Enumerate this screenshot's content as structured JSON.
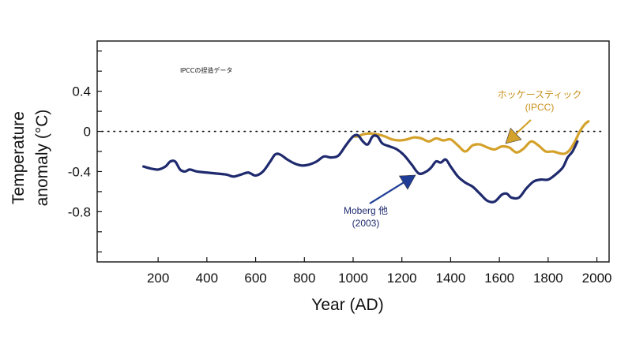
{
  "chart_data": {
    "type": "line",
    "title": "",
    "xlabel": "Year (AD)",
    "ylabel_line1": "Temperature",
    "ylabel_line2": "anomaly (°C)",
    "xlim": [
      -50,
      2050
    ],
    "ylim": [
      -1.3,
      0.9
    ],
    "xticks": [
      200,
      400,
      600,
      800,
      1000,
      1200,
      1400,
      1600,
      1800,
      2000
    ],
    "yticks": [
      0.4,
      0,
      -0.4,
      -0.8
    ],
    "ytick_labels": [
      "0.4",
      "0",
      "-0.4",
      "-0.8"
    ],
    "yticks_unlabeled": [
      0.8,
      0.6,
      0.2,
      -0.2,
      -0.6,
      -1.0,
      -1.2
    ],
    "zero_line": 0,
    "note": "IPCCの捏造データ",
    "series": [
      {
        "name": "Moberg 他 (2003)",
        "label_line1": "Moberg 他",
        "label_line2": "(2003)",
        "color": "#1f2a6e",
        "x": [
          140,
          170,
          200,
          230,
          250,
          270,
          290,
          310,
          330,
          360,
          400,
          440,
          480,
          510,
          540,
          570,
          600,
          630,
          660,
          680,
          700,
          730,
          760,
          790,
          820,
          850,
          880,
          910,
          940,
          970,
          1000,
          1020,
          1040,
          1060,
          1080,
          1100,
          1120,
          1150,
          1180,
          1210,
          1240,
          1270,
          1300,
          1320,
          1340,
          1360,
          1380,
          1400,
          1430,
          1460,
          1490,
          1520,
          1550,
          1580,
          1610,
          1630,
          1650,
          1680,
          1710,
          1740,
          1770,
          1800,
          1830,
          1860,
          1880,
          1900,
          1920
        ],
        "y": [
          -0.35,
          -0.37,
          -0.38,
          -0.35,
          -0.3,
          -0.3,
          -0.38,
          -0.4,
          -0.38,
          -0.4,
          -0.41,
          -0.42,
          -0.43,
          -0.45,
          -0.43,
          -0.41,
          -0.44,
          -0.4,
          -0.3,
          -0.23,
          -0.23,
          -0.28,
          -0.32,
          -0.34,
          -0.33,
          -0.3,
          -0.25,
          -0.26,
          -0.24,
          -0.14,
          -0.05,
          -0.04,
          -0.1,
          -0.13,
          -0.05,
          -0.05,
          -0.12,
          -0.15,
          -0.18,
          -0.24,
          -0.33,
          -0.42,
          -0.4,
          -0.36,
          -0.3,
          -0.31,
          -0.28,
          -0.35,
          -0.45,
          -0.51,
          -0.55,
          -0.62,
          -0.69,
          -0.7,
          -0.63,
          -0.62,
          -0.66,
          -0.66,
          -0.57,
          -0.5,
          -0.48,
          -0.48,
          -0.43,
          -0.36,
          -0.26,
          -0.2,
          -0.1
        ]
      },
      {
        "name": "ホッケースティック (IPCC)",
        "label_line1": "ホッケースティック",
        "label_line2": "(IPCC)",
        "color": "#d4a12a",
        "x": [
          1000,
          1020,
          1040,
          1070,
          1100,
          1130,
          1160,
          1190,
          1220,
          1250,
          1280,
          1310,
          1340,
          1370,
          1400,
          1430,
          1460,
          1490,
          1520,
          1550,
          1580,
          1610,
          1640,
          1670,
          1700,
          1730,
          1760,
          1790,
          1820,
          1850,
          1870,
          1890,
          1910,
          1930,
          1950,
          1965
        ],
        "y": [
          -0.05,
          -0.05,
          -0.03,
          -0.02,
          -0.03,
          -0.05,
          -0.08,
          -0.09,
          -0.08,
          -0.06,
          -0.07,
          -0.1,
          -0.07,
          -0.09,
          -0.08,
          -0.14,
          -0.2,
          -0.14,
          -0.13,
          -0.16,
          -0.18,
          -0.15,
          -0.16,
          -0.21,
          -0.17,
          -0.1,
          -0.14,
          -0.2,
          -0.2,
          -0.22,
          -0.22,
          -0.18,
          -0.1,
          0.0,
          0.07,
          0.1
        ]
      }
    ]
  }
}
